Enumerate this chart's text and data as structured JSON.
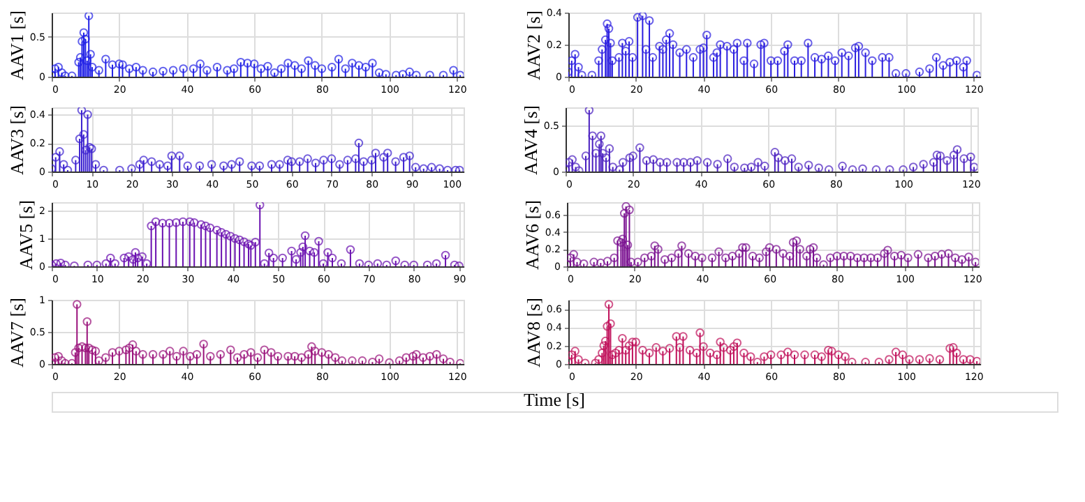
{
  "chart_data": [
    {
      "type": "lollipop",
      "ylabel": "AAV1 [s]",
      "color": "#1f1fe6",
      "marker": "circle",
      "grid": true,
      "xlim": [
        0,
        122
      ],
      "xticks": [
        0,
        20,
        40,
        60,
        80,
        100,
        120
      ],
      "ylim": [
        0,
        0.8
      ],
      "yticks": [
        0,
        0.5
      ],
      "x": [
        0,
        1,
        2,
        3,
        4,
        6,
        8,
        8.5,
        9,
        9.5,
        10,
        10.5,
        11,
        11.5,
        12,
        14,
        16,
        18,
        20,
        21,
        23,
        25,
        27,
        30,
        33,
        36,
        39,
        42,
        44,
        46,
        49,
        52,
        54,
        56,
        58,
        60,
        62,
        64,
        66,
        68,
        70,
        72,
        74,
        76,
        78,
        80,
        83,
        85,
        87,
        89,
        91,
        93,
        95,
        97,
        99,
        102,
        104,
        106,
        108,
        112,
        116,
        119,
        121
      ],
      "values": [
        0.02,
        0.1,
        0.12,
        0.05,
        0.01,
        0.01,
        0.18,
        0.24,
        0.44,
        0.55,
        0.47,
        0.2,
        0.76,
        0.28,
        0.12,
        0.08,
        0.22,
        0.15,
        0.16,
        0.15,
        0.1,
        0.12,
        0.08,
        0.06,
        0.07,
        0.08,
        0.1,
        0.1,
        0.16,
        0.08,
        0.12,
        0.08,
        0.1,
        0.18,
        0.17,
        0.16,
        0.1,
        0.13,
        0.05,
        0.1,
        0.17,
        0.14,
        0.1,
        0.2,
        0.14,
        0.1,
        0.12,
        0.22,
        0.1,
        0.17,
        0.14,
        0.12,
        0.17,
        0.05,
        0.03,
        0.02,
        0.03,
        0.06,
        0.02,
        0.02,
        0.02,
        0.08,
        0.02
      ]
    },
    {
      "type": "lollipop",
      "ylabel": "AAV2 [s]",
      "color": "#2a1de0",
      "marker": "circle",
      "grid": true,
      "xlim": [
        0,
        122
      ],
      "xticks": [
        0,
        20,
        40,
        60,
        80,
        100,
        120
      ],
      "ylim": [
        0,
        0.4
      ],
      "yticks": [
        0,
        0.2,
        0.4
      ],
      "x": [
        0,
        1,
        2,
        3,
        4,
        7,
        9,
        10,
        11,
        11.5,
        12,
        12.5,
        13,
        15,
        16,
        17,
        18,
        19,
        20.5,
        22,
        23,
        24,
        25,
        27,
        28,
        29,
        30,
        31,
        33,
        35,
        37,
        39,
        40,
        41,
        43,
        44,
        45,
        47,
        49,
        50,
        52,
        53,
        55,
        57,
        58,
        60,
        62,
        64,
        65,
        67,
        69,
        71,
        73,
        75,
        77,
        79,
        81,
        83,
        85,
        86,
        88,
        90,
        93,
        95,
        97,
        100,
        104,
        107,
        109,
        111,
        113,
        115,
        117,
        118,
        121
      ],
      "values": [
        0.03,
        0.1,
        0.14,
        0.06,
        0.01,
        0.01,
        0.1,
        0.17,
        0.23,
        0.33,
        0.3,
        0.21,
        0.1,
        0.12,
        0.21,
        0.16,
        0.22,
        0.12,
        0.37,
        0.38,
        0.17,
        0.35,
        0.12,
        0.19,
        0.17,
        0.23,
        0.27,
        0.2,
        0.15,
        0.17,
        0.12,
        0.17,
        0.18,
        0.26,
        0.12,
        0.15,
        0.2,
        0.19,
        0.17,
        0.21,
        0.1,
        0.21,
        0.08,
        0.2,
        0.21,
        0.1,
        0.1,
        0.16,
        0.2,
        0.1,
        0.1,
        0.21,
        0.12,
        0.11,
        0.13,
        0.1,
        0.15,
        0.13,
        0.18,
        0.19,
        0.15,
        0.1,
        0.12,
        0.12,
        0.02,
        0.02,
        0.03,
        0.05,
        0.12,
        0.07,
        0.09,
        0.1,
        0.06,
        0.1,
        0.01
      ]
    },
    {
      "type": "lollipop",
      "ylabel": "AAV3 [s]",
      "color": "#3a1fd0",
      "marker": "circle",
      "grid": true,
      "xlim": [
        0,
        103
      ],
      "xticks": [
        0,
        10,
        20,
        30,
        40,
        50,
        60,
        70,
        80,
        90,
        100
      ],
      "ylim": [
        0,
        0.45
      ],
      "yticks": [
        0,
        0.2,
        0.4
      ],
      "x": [
        0,
        1,
        2,
        3,
        4,
        6,
        7,
        7.5,
        8,
        8.5,
        9,
        9.5,
        10,
        11,
        13,
        17,
        20,
        22,
        23,
        25,
        27,
        29,
        30,
        32,
        34,
        37,
        40,
        43,
        45,
        47,
        50,
        52,
        55,
        57,
        59,
        60,
        62,
        64,
        66,
        68,
        70,
        72,
        74,
        76,
        76.8,
        78,
        80,
        81,
        83,
        84,
        86,
        88,
        89.5,
        91,
        93,
        95,
        97,
        99,
        101,
        102
      ],
      "values": [
        0.02,
        0.1,
        0.14,
        0.05,
        0.01,
        0.08,
        0.23,
        0.43,
        0.26,
        0.15,
        0.4,
        0.17,
        0.16,
        0.05,
        0.01,
        0.01,
        0.02,
        0.05,
        0.08,
        0.07,
        0.05,
        0.04,
        0.11,
        0.11,
        0.04,
        0.04,
        0.05,
        0.04,
        0.05,
        0.07,
        0.04,
        0.04,
        0.05,
        0.05,
        0.08,
        0.07,
        0.07,
        0.09,
        0.06,
        0.08,
        0.09,
        0.05,
        0.08,
        0.09,
        0.2,
        0.07,
        0.08,
        0.13,
        0.1,
        0.13,
        0.07,
        0.1,
        0.11,
        0.03,
        0.02,
        0.03,
        0.02,
        0.01,
        0.01,
        0.01
      ]
    },
    {
      "type": "lollipop",
      "ylabel": "AAV4 [s]",
      "color": "#4a1fc0",
      "marker": "circle",
      "grid": true,
      "xlim": [
        0,
        122
      ],
      "xticks": [
        0,
        20,
        40,
        60,
        80,
        100,
        120
      ],
      "ylim": [
        0,
        0.7
      ],
      "yticks": [
        0,
        0.5
      ],
      "x": [
        0,
        1,
        2,
        3,
        4,
        6,
        7,
        8,
        9,
        10,
        10.5,
        11,
        12,
        13,
        14,
        16,
        17,
        19,
        20,
        22,
        24,
        26,
        28,
        30,
        33,
        35,
        37,
        39,
        42,
        45,
        48,
        50,
        53,
        55,
        57,
        59,
        62,
        63,
        65,
        67,
        69,
        72,
        75,
        78,
        82,
        85,
        88,
        92,
        96,
        100,
        103,
        106,
        109,
        110,
        111,
        113,
        115,
        116,
        118,
        120,
        121
      ],
      "values": [
        0.02,
        0.1,
        0.13,
        0.05,
        0.01,
        0.17,
        0.67,
        0.39,
        0.2,
        0.3,
        0.39,
        0.2,
        0.15,
        0.25,
        0.05,
        0.02,
        0.1,
        0.15,
        0.17,
        0.26,
        0.12,
        0.13,
        0.1,
        0.1,
        0.1,
        0.1,
        0.1,
        0.12,
        0.1,
        0.08,
        0.14,
        0.05,
        0.04,
        0.05,
        0.1,
        0.06,
        0.21,
        0.15,
        0.12,
        0.14,
        0.05,
        0.07,
        0.04,
        0.02,
        0.06,
        0.02,
        0.03,
        0.02,
        0.02,
        0.02,
        0.05,
        0.08,
        0.1,
        0.18,
        0.17,
        0.12,
        0.18,
        0.24,
        0.14,
        0.16,
        0.05
      ]
    },
    {
      "type": "lollipop",
      "ylabel": "AAV5 [s]",
      "color": "#6a10b0",
      "marker": "circle",
      "grid": true,
      "xlim": [
        0,
        91
      ],
      "xticks": [
        0,
        10,
        20,
        30,
        40,
        50,
        60,
        70,
        80,
        90
      ],
      "ylim": [
        0,
        2.3
      ],
      "yticks": [
        0,
        1,
        2
      ],
      "x": [
        0,
        1,
        2,
        3,
        5,
        8,
        10,
        12,
        13,
        14,
        16,
        17,
        18,
        18.5,
        19,
        20,
        21,
        22,
        23,
        24.5,
        26,
        27.5,
        29,
        30.5,
        31.5,
        33,
        34,
        35,
        36.5,
        37.5,
        38.5,
        39.5,
        40.5,
        41.5,
        42.5,
        43.5,
        44,
        45,
        46,
        47,
        48,
        49,
        51,
        53,
        54,
        55,
        55.5,
        56,
        57,
        58,
        59,
        60,
        61,
        62,
        64,
        66,
        68,
        70,
        72,
        74,
        76,
        78,
        80,
        83,
        85,
        87,
        89,
        90
      ],
      "values": [
        0.05,
        0.1,
        0.12,
        0.05,
        0.02,
        0.05,
        0.05,
        0.1,
        0.3,
        0.1,
        0.3,
        0.35,
        0.25,
        0.5,
        0.3,
        0.35,
        0.1,
        1.45,
        1.6,
        1.55,
        1.55,
        1.57,
        1.6,
        1.6,
        1.57,
        1.5,
        1.45,
        1.38,
        1.3,
        1.22,
        1.15,
        1.08,
        1.0,
        0.95,
        0.88,
        0.8,
        0.75,
        0.87,
        2.2,
        0.1,
        0.48,
        0.3,
        0.3,
        0.55,
        0.25,
        0.5,
        0.7,
        1.1,
        0.55,
        0.5,
        0.9,
        0.1,
        0.5,
        0.3,
        0.1,
        0.6,
        0.1,
        0.05,
        0.1,
        0.05,
        0.2,
        0.05,
        0.05,
        0.05,
        0.1,
        0.4,
        0.05,
        0.02
      ]
    },
    {
      "type": "lollipop",
      "ylabel": "AAV6 [s]",
      "color": "#7a1090",
      "marker": "circle",
      "grid": true,
      "xlim": [
        0,
        122
      ],
      "xticks": [
        0,
        20,
        40,
        60,
        80,
        100,
        120
      ],
      "ylim": [
        0,
        0.75
      ],
      "yticks": [
        0,
        0.2,
        0.4,
        0.6
      ],
      "x": [
        0,
        1,
        2,
        3,
        5,
        8,
        10,
        12,
        14,
        15,
        16,
        16.5,
        17,
        17.5,
        18,
        18.5,
        19,
        21,
        23,
        25,
        26,
        27,
        29,
        31,
        33,
        34,
        36,
        38,
        40,
        43,
        45,
        47,
        49,
        51,
        52,
        53,
        55,
        57,
        59,
        60,
        62,
        64,
        66,
        67,
        68,
        69,
        71,
        72,
        73,
        74,
        76,
        78,
        80,
        82,
        84,
        86,
        88,
        90,
        92,
        94,
        95,
        97,
        99,
        101,
        104,
        107,
        109,
        111,
        113,
        115,
        117,
        119,
        121
      ],
      "values": [
        0.02,
        0.1,
        0.14,
        0.05,
        0.03,
        0.05,
        0.04,
        0.06,
        0.1,
        0.3,
        0.28,
        0.32,
        0.62,
        0.7,
        0.25,
        0.66,
        0.05,
        0.05,
        0.1,
        0.12,
        0.24,
        0.2,
        0.08,
        0.1,
        0.15,
        0.24,
        0.15,
        0.12,
        0.1,
        0.1,
        0.17,
        0.1,
        0.12,
        0.15,
        0.22,
        0.22,
        0.12,
        0.1,
        0.17,
        0.22,
        0.2,
        0.15,
        0.12,
        0.28,
        0.3,
        0.2,
        0.12,
        0.2,
        0.22,
        0.1,
        0.02,
        0.1,
        0.12,
        0.12,
        0.12,
        0.1,
        0.1,
        0.1,
        0.1,
        0.15,
        0.19,
        0.12,
        0.13,
        0.1,
        0.14,
        0.1,
        0.12,
        0.14,
        0.15,
        0.1,
        0.08,
        0.11,
        0.05
      ]
    },
    {
      "type": "lollipop",
      "ylabel": "AAV7 [s]",
      "xlabel": "Time [s]",
      "color": "#99107a",
      "marker": "circle",
      "grid": true,
      "xlim": [
        0,
        122
      ],
      "xticks": [
        0,
        20,
        40,
        60,
        80,
        100,
        120
      ],
      "ylim": [
        0,
        1
      ],
      "yticks": [
        0,
        0.5,
        1
      ],
      "x": [
        0,
        1,
        2,
        3,
        4,
        6,
        7,
        7.5,
        8,
        9,
        10,
        10.5,
        11,
        12,
        13,
        14,
        16,
        18,
        20,
        22,
        23,
        24,
        25,
        27,
        30,
        33,
        35,
        37,
        39,
        41,
        43,
        45,
        47,
        50,
        53,
        55,
        57,
        59,
        61,
        63,
        65,
        67,
        70,
        72,
        74,
        76,
        77,
        78,
        80,
        82,
        84,
        86,
        89,
        92,
        95,
        97,
        100,
        103,
        105,
        107,
        108,
        110,
        112,
        114,
        116,
        118,
        121
      ],
      "values": [
        0.02,
        0.1,
        0.12,
        0.05,
        0.01,
        0.01,
        0.18,
        0.93,
        0.25,
        0.27,
        0.25,
        0.66,
        0.25,
        0.22,
        0.2,
        0.05,
        0.1,
        0.18,
        0.2,
        0.22,
        0.25,
        0.3,
        0.2,
        0.15,
        0.15,
        0.15,
        0.2,
        0.12,
        0.2,
        0.12,
        0.15,
        0.31,
        0.12,
        0.15,
        0.22,
        0.1,
        0.15,
        0.18,
        0.1,
        0.22,
        0.18,
        0.12,
        0.12,
        0.12,
        0.1,
        0.15,
        0.27,
        0.2,
        0.18,
        0.15,
        0.1,
        0.05,
        0.05,
        0.05,
        0.03,
        0.08,
        0.02,
        0.05,
        0.1,
        0.12,
        0.15,
        0.1,
        0.12,
        0.15,
        0.08,
        0.03,
        0.01
      ]
    },
    {
      "type": "lollipop",
      "ylabel": "AAV8 [s]",
      "color": "#c0105a",
      "marker": "circle",
      "grid": true,
      "xlim": [
        0,
        122
      ],
      "xticks": [
        0,
        20,
        40,
        60,
        80,
        100,
        120
      ],
      "ylim": [
        0,
        0.7
      ],
      "yticks": [
        0,
        0.2,
        0.4,
        0.6
      ],
      "x": [
        0,
        1,
        2,
        3,
        5,
        8,
        9,
        10,
        10.5,
        11,
        11.5,
        12,
        12.5,
        13,
        14,
        15,
        16,
        17,
        18,
        19,
        20,
        22,
        24,
        26,
        28,
        30,
        32,
        33,
        34,
        36,
        38,
        39,
        40,
        42,
        44,
        45,
        46,
        48,
        49,
        50,
        52,
        54,
        56,
        58,
        60,
        63,
        65,
        67,
        70,
        73,
        75,
        77,
        78,
        80,
        82,
        84,
        88,
        92,
        95,
        97,
        99,
        101,
        104,
        107,
        110,
        113,
        114,
        115,
        117,
        119,
        121
      ],
      "values": [
        0.02,
        0.1,
        0.14,
        0.05,
        0.01,
        0.01,
        0.05,
        0.12,
        0.2,
        0.25,
        0.41,
        0.65,
        0.44,
        0.1,
        0.12,
        0.15,
        0.28,
        0.15,
        0.2,
        0.24,
        0.24,
        0.15,
        0.12,
        0.18,
        0.14,
        0.17,
        0.3,
        0.18,
        0.3,
        0.15,
        0.12,
        0.34,
        0.19,
        0.12,
        0.1,
        0.24,
        0.18,
        0.15,
        0.19,
        0.23,
        0.12,
        0.08,
        0.02,
        0.08,
        0.1,
        0.1,
        0.13,
        0.1,
        0.1,
        0.1,
        0.08,
        0.15,
        0.14,
        0.1,
        0.08,
        0.02,
        0.02,
        0.02,
        0.05,
        0.13,
        0.1,
        0.05,
        0.05,
        0.06,
        0.05,
        0.17,
        0.18,
        0.12,
        0.05,
        0.05,
        0.03
      ]
    }
  ]
}
